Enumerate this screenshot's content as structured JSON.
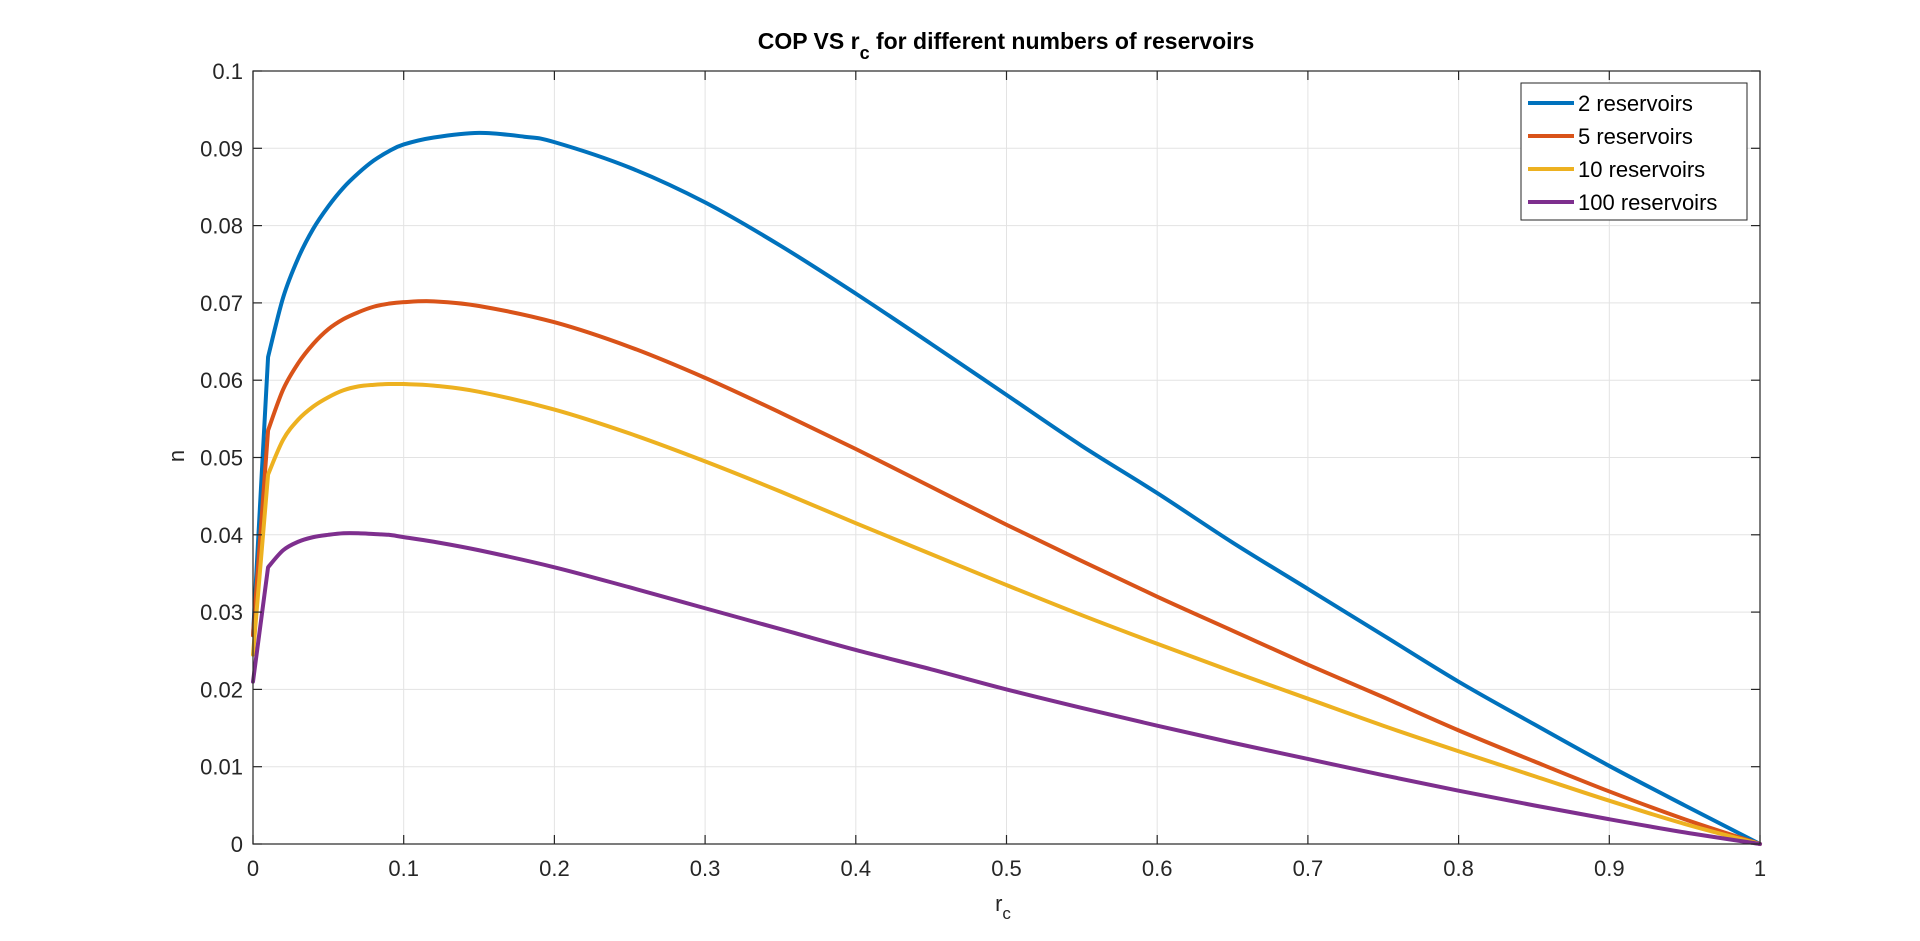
{
  "chart_data": {
    "type": "line",
    "title": "COP VS r",
    "title_sub": "c",
    "title_rest": " for different numbers of reservoirs",
    "xlabel": "r",
    "xlabel_sub": "c",
    "ylabel": "n",
    "xlim": [
      0,
      1
    ],
    "ylim": [
      0,
      0.1
    ],
    "xticks": [
      0,
      0.1,
      0.2,
      0.3,
      0.4,
      0.5,
      0.6,
      0.7,
      0.8,
      0.9,
      1
    ],
    "xtick_labels": [
      "0",
      "0.1",
      "0.2",
      "0.3",
      "0.4",
      "0.5",
      "0.6",
      "0.7",
      "0.8",
      "0.9",
      "1"
    ],
    "yticks": [
      0,
      0.01,
      0.02,
      0.03,
      0.04,
      0.05,
      0.06,
      0.07,
      0.08,
      0.09,
      0.1
    ],
    "ytick_labels": [
      "0",
      "0.01",
      "0.02",
      "0.03",
      "0.04",
      "0.05",
      "0.06",
      "0.07",
      "0.08",
      "0.09",
      "0.1"
    ],
    "grid": true,
    "legend_position": "top-right",
    "series": [
      {
        "name": "2 reservoirs",
        "color": "#0072BD",
        "x": [
          0,
          0.01,
          0.02,
          0.03,
          0.04,
          0.05,
          0.06,
          0.07,
          0.08,
          0.09,
          0.1,
          0.12,
          0.15,
          0.18,
          0.2,
          0.25,
          0.3,
          0.35,
          0.4,
          0.45,
          0.5,
          0.55,
          0.6,
          0.65,
          0.7,
          0.75,
          0.8,
          0.85,
          0.9,
          0.95,
          1
        ],
        "y": [
          0.027,
          0.063,
          0.0707,
          0.0758,
          0.0796,
          0.0825,
          0.0849,
          0.0868,
          0.0884,
          0.0896,
          0.0905,
          0.0914,
          0.092,
          0.0915,
          0.0908,
          0.0875,
          0.083,
          0.0774,
          0.0712,
          0.0647,
          0.0581,
          0.0515,
          0.0454,
          0.039,
          0.033,
          0.027,
          0.021,
          0.0155,
          0.0101,
          0.005,
          0.0
        ]
      },
      {
        "name": "5 reservoirs",
        "color": "#D95319",
        "x": [
          0,
          0.01,
          0.02,
          0.03,
          0.04,
          0.05,
          0.06,
          0.07,
          0.08,
          0.09,
          0.1,
          0.12,
          0.15,
          0.2,
          0.25,
          0.3,
          0.35,
          0.4,
          0.45,
          0.5,
          0.55,
          0.6,
          0.65,
          0.7,
          0.75,
          0.8,
          0.85,
          0.9,
          0.95,
          1
        ],
        "y": [
          0.027,
          0.0535,
          0.0588,
          0.0622,
          0.0647,
          0.0666,
          0.0679,
          0.0688,
          0.0695,
          0.0699,
          0.0701,
          0.0702,
          0.0696,
          0.0675,
          0.0643,
          0.0603,
          0.0558,
          0.0511,
          0.0462,
          0.0413,
          0.0366,
          0.032,
          0.0276,
          0.0232,
          0.019,
          0.0147,
          0.0107,
          0.0068,
          0.0032,
          0.0
        ]
      },
      {
        "name": "10 reservoirs",
        "color": "#EDB120",
        "x": [
          0,
          0.01,
          0.02,
          0.03,
          0.04,
          0.05,
          0.06,
          0.07,
          0.08,
          0.09,
          0.1,
          0.12,
          0.15,
          0.2,
          0.25,
          0.3,
          0.35,
          0.4,
          0.45,
          0.5,
          0.55,
          0.6,
          0.65,
          0.7,
          0.75,
          0.8,
          0.85,
          0.9,
          0.95,
          1
        ],
        "y": [
          0.0245,
          0.0478,
          0.0523,
          0.0549,
          0.0566,
          0.0578,
          0.0587,
          0.0592,
          0.0594,
          0.0595,
          0.0595,
          0.0593,
          0.0585,
          0.0562,
          0.0531,
          0.0495,
          0.0456,
          0.0415,
          0.0375,
          0.0335,
          0.0296,
          0.0259,
          0.0223,
          0.0188,
          0.0153,
          0.012,
          0.0088,
          0.0056,
          0.0026,
          0.0
        ]
      },
      {
        "name": "100 reservoirs",
        "color": "#7E2F8E",
        "x": [
          0,
          0.01,
          0.02,
          0.03,
          0.04,
          0.05,
          0.06,
          0.07,
          0.08,
          0.09,
          0.1,
          0.12,
          0.15,
          0.2,
          0.25,
          0.3,
          0.35,
          0.4,
          0.45,
          0.5,
          0.55,
          0.6,
          0.65,
          0.7,
          0.75,
          0.8,
          0.85,
          0.9,
          0.95,
          1
        ],
        "y": [
          0.021,
          0.0358,
          0.038,
          0.0391,
          0.0397,
          0.04,
          0.0402,
          0.0402,
          0.0401,
          0.04,
          0.0397,
          0.0391,
          0.038,
          0.0358,
          0.0332,
          0.0305,
          0.0278,
          0.0251,
          0.0226,
          0.02,
          0.0176,
          0.0153,
          0.0131,
          0.011,
          0.0089,
          0.0069,
          0.005,
          0.0032,
          0.0015,
          0.0
        ]
      }
    ]
  }
}
